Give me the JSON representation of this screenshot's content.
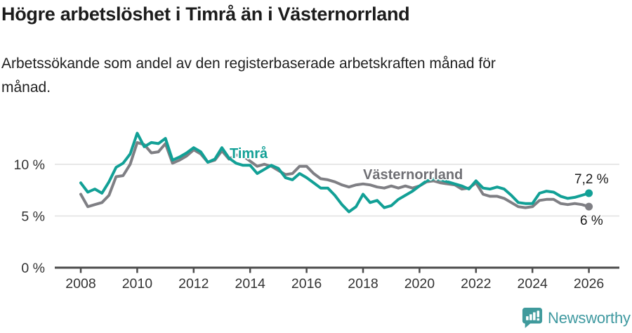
{
  "header": {
    "title": "Högre arbetslöshet i Timrå än i Västernorrland",
    "subtitle_lines": [
      "Arbetssökande som andel av den registerbaserade arbetskraften månad för",
      "månad."
    ]
  },
  "chart_data": {
    "type": "line",
    "x_start": 2008.0,
    "x_step": 0.25,
    "x_ticks": [
      2008,
      2010,
      2012,
      2014,
      2016,
      2018,
      2020,
      2022,
      2024,
      2026
    ],
    "y_ticks": [
      {
        "value": 0,
        "label": "0 %"
      },
      {
        "value": 5,
        "label": "5 %"
      },
      {
        "value": 10,
        "label": "10 %"
      }
    ],
    "ylim": [
      0,
      14
    ],
    "xlabel": "",
    "ylabel": "",
    "grid": "horizontal",
    "legend_position": "inline-labels",
    "series": [
      {
        "name": "Timrå",
        "color": "#12a096",
        "end_label": "7,2 %",
        "values": [
          8.2,
          7.3,
          7.6,
          7.2,
          8.3,
          9.7,
          10.1,
          11.0,
          13.0,
          11.7,
          12.1,
          12.0,
          12.5,
          10.4,
          10.7,
          11.1,
          11.6,
          11.2,
          10.2,
          10.5,
          11.6,
          10.6,
          10.1,
          9.9,
          9.9,
          9.1,
          9.5,
          9.9,
          9.6,
          8.7,
          8.5,
          9.1,
          8.7,
          8.2,
          7.7,
          7.7,
          7.0,
          6.1,
          5.4,
          5.9,
          7.1,
          6.3,
          6.5,
          5.8,
          6.0,
          6.6,
          7.0,
          7.4,
          7.9,
          8.4,
          8.6,
          8.5,
          8.3,
          8.1,
          7.9,
          7.6,
          8.4,
          7.7,
          7.6,
          7.8,
          7.6,
          7.0,
          6.3,
          6.2,
          6.2,
          7.2,
          7.4,
          7.3,
          6.9,
          6.7,
          6.8,
          7.0,
          7.2
        ]
      },
      {
        "name": "Västernorrland",
        "color": "#7f7f84",
        "end_label": "6 %",
        "values": [
          7.1,
          5.9,
          6.1,
          6.3,
          7.0,
          8.8,
          8.9,
          10.0,
          12.1,
          11.9,
          11.1,
          11.2,
          12.0,
          10.1,
          10.4,
          10.8,
          11.4,
          11.0,
          10.2,
          10.4,
          11.3,
          10.5,
          10.9,
          10.8,
          10.3,
          9.8,
          10.0,
          9.8,
          9.4,
          9.0,
          9.1,
          9.8,
          9.8,
          9.1,
          8.6,
          8.5,
          8.3,
          8.0,
          7.8,
          8.0,
          8.1,
          8.0,
          7.8,
          7.7,
          7.9,
          7.7,
          7.9,
          7.7,
          7.9,
          8.3,
          8.4,
          8.2,
          8.1,
          8.0,
          7.6,
          7.7,
          8.2,
          7.1,
          6.9,
          6.9,
          6.7,
          6.3,
          5.9,
          5.8,
          5.9,
          6.5,
          6.6,
          6.6,
          6.2,
          6.1,
          6.2,
          6.1,
          5.9
        ]
      }
    ],
    "axis_color": "#4c4c4c",
    "grid_color": "#e2e2e2",
    "tick_label_color": "#333333"
  },
  "footer": {
    "brand": "Newsworthy",
    "logo_color": "#3f9a9c"
  }
}
